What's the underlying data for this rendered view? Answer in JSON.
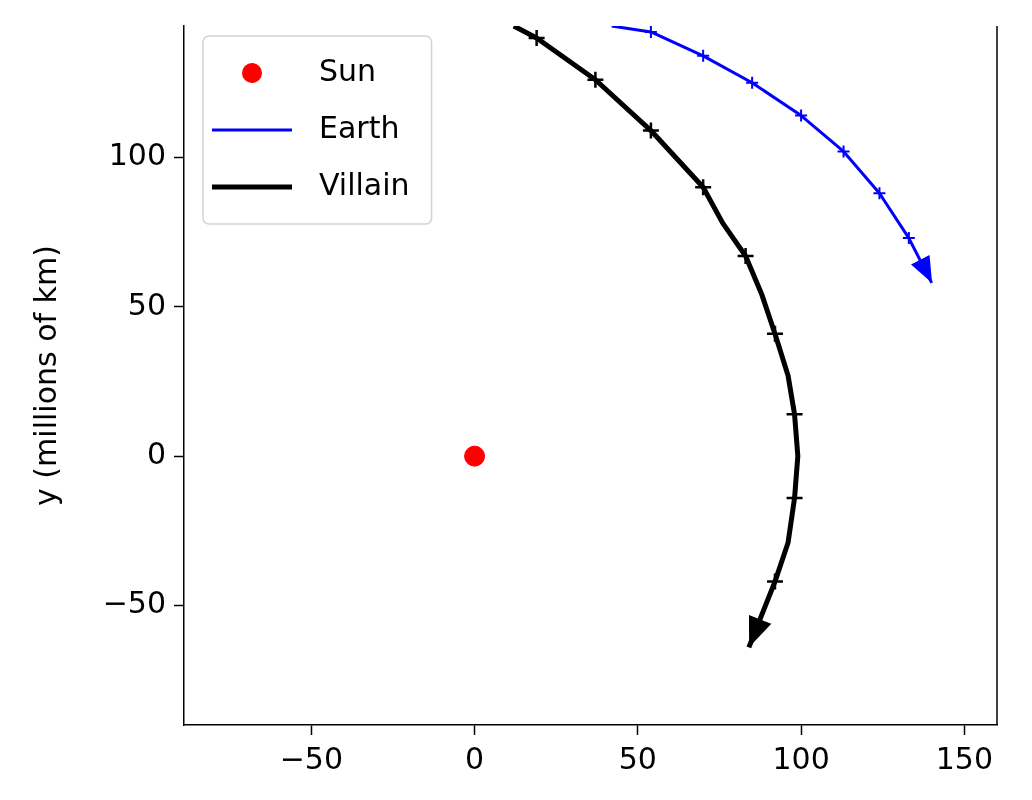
{
  "chart_data": {
    "type": "line",
    "ylabel": "y (millions of km)",
    "xlim": [
      -89,
      160
    ],
    "xticks": [
      {
        "value": -50,
        "label": "−50"
      },
      0,
      50,
      100,
      150
    ],
    "ylim": [
      -90,
      144
    ],
    "yticks": [
      {
        "value": -50,
        "label": "−50"
      },
      0,
      50,
      100
    ],
    "legend": "top left",
    "series": [
      {
        "name": "Sun",
        "type": "scatter",
        "color": "#ff0000",
        "marker": "circle",
        "x": [
          0
        ],
        "values": [
          0
        ]
      },
      {
        "name": "Earth",
        "type": "line",
        "color": "#0000ff",
        "x": [
          42,
          54,
          70,
          85,
          100,
          113,
          124,
          133,
          140
        ],
        "values": [
          144,
          142,
          134,
          125,
          114,
          102,
          88,
          73,
          58
        ]
      },
      {
        "name": "Villain",
        "type": "line",
        "color": "#000000",
        "x": [
          12,
          19,
          37,
          54,
          70,
          76,
          83,
          88,
          92,
          96,
          98,
          99,
          98,
          96,
          92,
          84
        ],
        "values": [
          144,
          140,
          126,
          109,
          90,
          78,
          67,
          54,
          41,
          27,
          14,
          0,
          -14,
          -29,
          -42,
          -64
        ]
      },
      {
        "type": "scatter",
        "color": "#0000ff",
        "marker": "cross",
        "x": [
          54,
          70,
          85,
          100,
          113,
          124,
          133
        ],
        "values": [
          142,
          134,
          125,
          114,
          102,
          88,
          73
        ]
      },
      {
        "type": "scatter",
        "color": "#000000",
        "marker": "cross",
        "x": [
          19,
          37,
          54,
          70,
          83,
          92,
          98,
          98,
          92
        ],
        "values": [
          140,
          126,
          109,
          90,
          67,
          41,
          14,
          -14,
          -42
        ]
      }
    ]
  }
}
